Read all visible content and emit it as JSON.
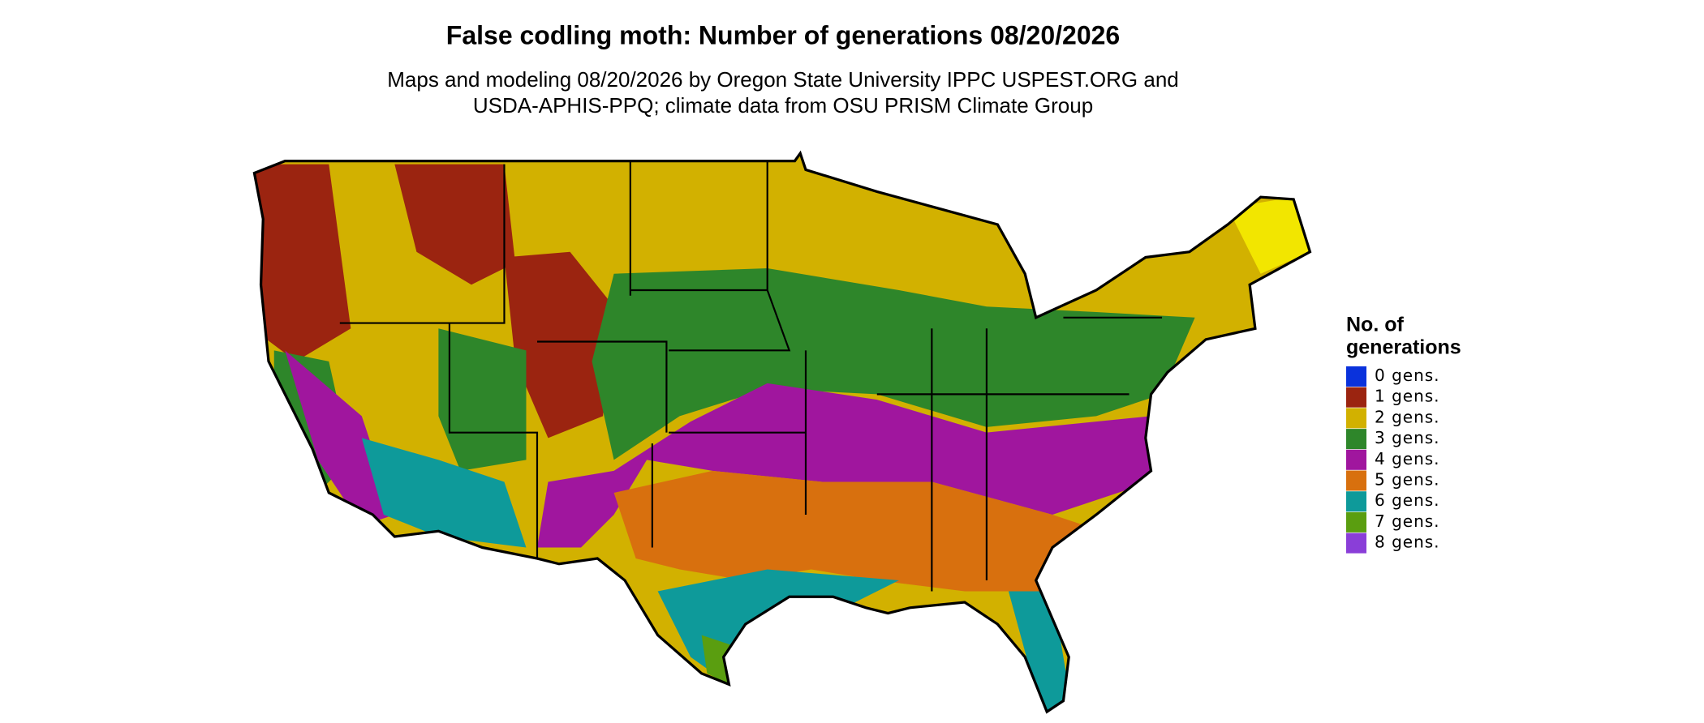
{
  "title": "False codling moth: Number of generations 08/20/2026",
  "subtitle_lines": [
    "Maps and modeling 08/20/2026 by Oregon State University IPPC USPEST.ORG and",
    "USDA-APHIS-PPQ; climate data from OSU PRISM Climate Group"
  ],
  "legend": {
    "title_lines": [
      "No. of",
      "generations"
    ],
    "items": [
      {
        "label": "0 gens.",
        "color": "#0a32dc"
      },
      {
        "label": "1 gens.",
        "color": "#9b2410"
      },
      {
        "label": "2 gens.",
        "color": "#d2b100"
      },
      {
        "label": "3 gens.",
        "color": "#2e862a"
      },
      {
        "label": "4 gens.",
        "color": "#a0169e"
      },
      {
        "label": "5 gens.",
        "color": "#d8700e"
      },
      {
        "label": "6 gens.",
        "color": "#0e9a9a"
      },
      {
        "label": "7 gens.",
        "color": "#5a9e10"
      },
      {
        "label": "8 gens.",
        "color": "#8a3ed8"
      }
    ]
  }
}
